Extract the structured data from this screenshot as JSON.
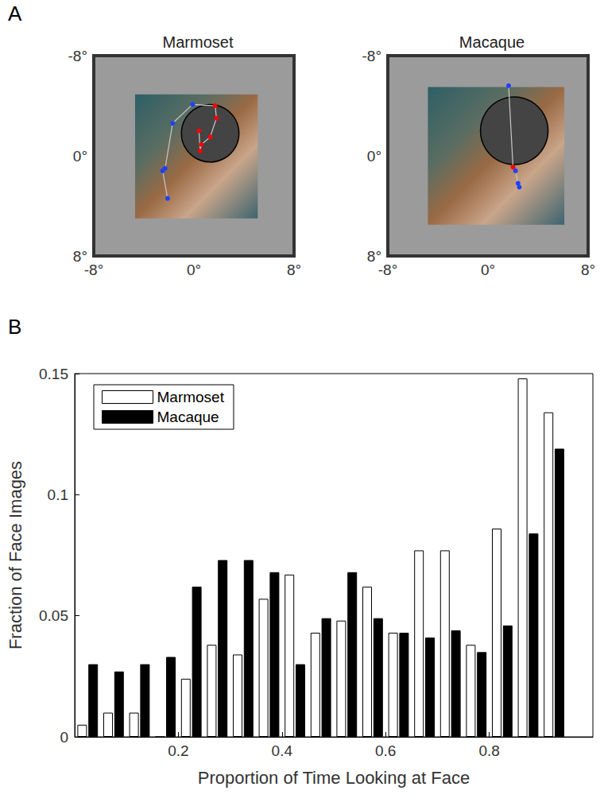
{
  "chart_data": [
    {
      "panel": "A",
      "title": "Marmoset",
      "type": "line",
      "marker": "circle",
      "xlim": [
        -8,
        8
      ],
      "ylim": [
        8,
        -8
      ],
      "xticks": [
        {
          "value": -8,
          "label": "-8°"
        },
        {
          "value": 0,
          "label": "0°"
        },
        {
          "value": 8,
          "label": "8°"
        }
      ],
      "yticks": [
        {
          "value": -8,
          "label": "-8°"
        },
        {
          "value": 0,
          "label": "0°"
        },
        {
          "value": 8,
          "label": "8°"
        }
      ],
      "image_extent": {
        "x": [
          -4.7,
          5.1
        ],
        "y": [
          -4.9,
          5.0
        ]
      },
      "face": {
        "x": 1.3,
        "y": -1.8,
        "r": 2.3
      },
      "series": [
        {
          "color": "#c8c8c8",
          "x": [
            -2.1,
            -2.5,
            -2.3,
            -1.7,
            -0.1,
            1.7,
            1.8,
            1.3,
            0.6,
            0.5,
            0.4
          ],
          "y": [
            3.4,
            1.2,
            1.0,
            -2.6,
            -4.1,
            -4.0,
            -3.0,
            -1.5,
            -0.9,
            -0.4,
            -2.0
          ],
          "colors": [
            "#2040ff",
            "#2040ff",
            "#2040ff",
            "#2040ff",
            "#2040ff",
            "#ff0000",
            "#ff0000",
            "#ff0000",
            "#ff0000",
            "#ff0000",
            "#ff0000"
          ]
        }
      ]
    },
    {
      "panel": "A",
      "title": "Macaque",
      "type": "line",
      "marker": "circle",
      "xlim": [
        -8,
        8
      ],
      "ylim": [
        8,
        -8
      ],
      "xticks": [
        {
          "value": -8,
          "label": "-8°"
        },
        {
          "value": 0,
          "label": "0°"
        },
        {
          "value": 8,
          "label": "8°"
        }
      ],
      "yticks": [
        {
          "value": -8,
          "label": "-8°"
        },
        {
          "value": 0,
          "label": "0°"
        },
        {
          "value": 8,
          "label": "8°"
        }
      ],
      "image_extent": {
        "x": [
          -4.8,
          6.1
        ],
        "y": [
          -5.5,
          5.5
        ]
      },
      "face": {
        "x": 2.1,
        "y": -2.0,
        "r": 2.7
      },
      "series": [
        {
          "color": "#c8c8c8",
          "x": [
            1.65,
            2.0,
            2.2,
            2.4,
            2.5
          ],
          "y": [
            -5.6,
            0.9,
            1.2,
            2.2,
            2.5
          ],
          "colors": [
            "#2040ff",
            "#ff0000",
            "#2040ff",
            "#2040ff",
            "#2040ff"
          ]
        }
      ]
    },
    {
      "panel": "B",
      "type": "bar",
      "x_label": "Proportion of Time Looking at Face",
      "y_label": "Fraction of Face Images",
      "bins": [
        0,
        0.05,
        0.1,
        0.15,
        0.2,
        0.25,
        0.3,
        0.35,
        0.4,
        0.45,
        0.5,
        0.55,
        0.6,
        0.65,
        0.7,
        0.75,
        0.8,
        0.85,
        0.9,
        0.95
      ],
      "series": [
        {
          "name": "Marmoset",
          "color": "#ffffff",
          "values": [
            0.005,
            0.01,
            0.01,
            0,
            0.024,
            0.038,
            0.034,
            0.057,
            0.067,
            0.043,
            0.048,
            0.062,
            0.043,
            0.077,
            0.077,
            0.038,
            0.086,
            0.148,
            0.134
          ]
        },
        {
          "name": "Macaque",
          "color": "#000000",
          "values": [
            0.03,
            0.027,
            0.03,
            0.033,
            0.062,
            0.073,
            0.073,
            0.068,
            0.03,
            0.049,
            0.068,
            0.049,
            0.043,
            0.041,
            0.044,
            0.035,
            0.046,
            0.084,
            0.119
          ]
        }
      ],
      "xlim": [
        0,
        1
      ],
      "ylim": [
        0,
        0.15
      ],
      "xticks": [
        0.2,
        0.4,
        0.6,
        0.8
      ],
      "yticks": [
        0,
        0.05,
        0.1,
        0.15
      ],
      "legend": "upper left",
      "grid": false
    }
  ]
}
